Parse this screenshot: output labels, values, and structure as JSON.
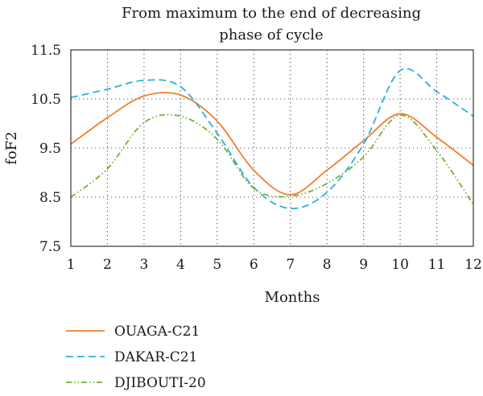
{
  "chart_data": {
    "type": "line",
    "title_lines": [
      "From maximum to the end of decreasing",
      "phase of cycle"
    ],
    "xlabel": "Months",
    "ylabel": "foF2",
    "x": [
      1,
      2,
      3,
      4,
      5,
      6,
      7,
      8,
      9,
      10,
      11,
      12
    ],
    "x_tick_labels": [
      "1",
      "2",
      "3",
      "4",
      "5",
      "6",
      "7",
      "8",
      "9",
      "10",
      "11",
      "12"
    ],
    "y_ticks": [
      7.5,
      8.5,
      9.5,
      10.5,
      11.5
    ],
    "y_tick_labels": [
      "7.5",
      "8.5",
      "9.5",
      "10.5",
      "11.5"
    ],
    "xlim": [
      1,
      12
    ],
    "ylim": [
      7.5,
      11.5
    ],
    "grid": true,
    "legend_position": "bottom",
    "series": [
      {
        "name": "OUAGA-C21",
        "color": "#f07f2e",
        "dash": "solid",
        "values": [
          9.58,
          10.12,
          10.56,
          10.58,
          10.05,
          9.05,
          8.55,
          9.05,
          9.65,
          10.2,
          9.72,
          9.15
        ]
      },
      {
        "name": "DAKAR-C21",
        "color": "#29b0e0",
        "dash": "dashed",
        "values": [
          10.53,
          10.7,
          10.88,
          10.75,
          9.8,
          8.7,
          8.27,
          8.6,
          9.58,
          11.08,
          10.65,
          10.15
        ]
      },
      {
        "name": "DJIBOUTI-20",
        "color": "#6eb42e",
        "dash": "dashdotdot",
        "values": [
          8.5,
          9.08,
          10.02,
          10.15,
          9.68,
          8.68,
          8.52,
          8.78,
          9.32,
          10.17,
          9.45,
          8.35
        ]
      }
    ]
  }
}
